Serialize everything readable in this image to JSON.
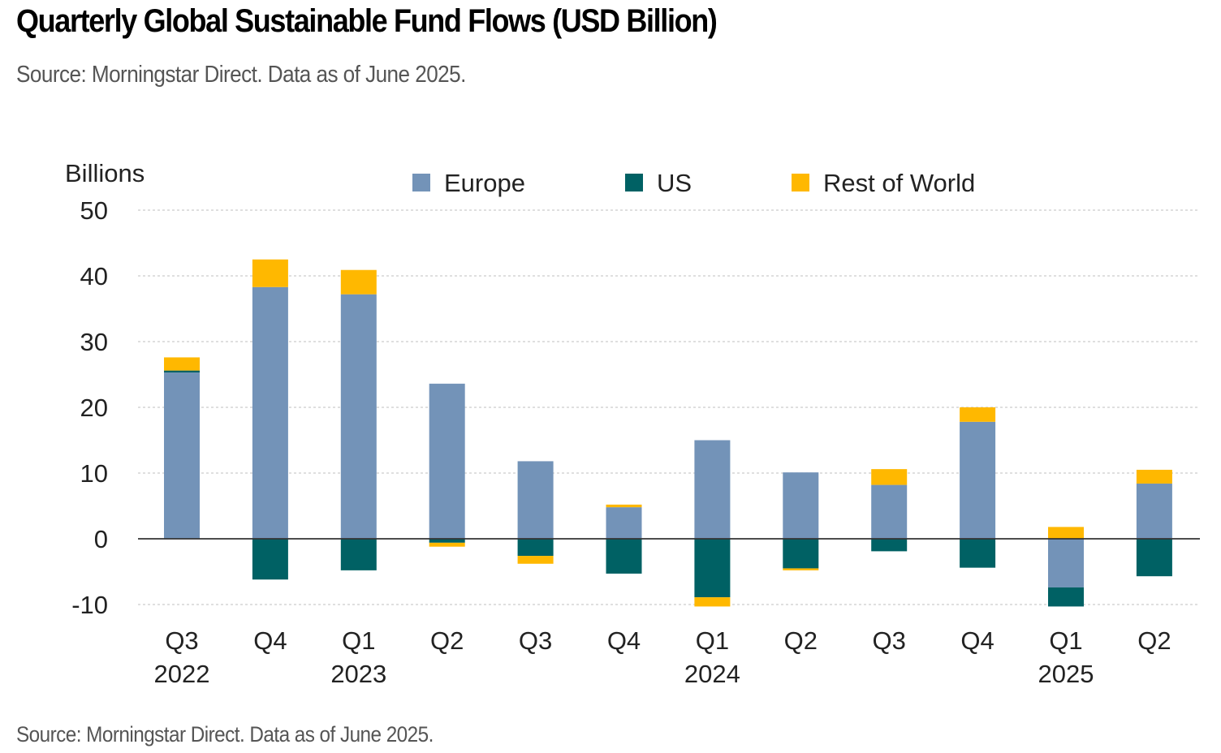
{
  "title": "Quarterly Global Sustainable Fund Flows (USD Billion)",
  "subtitle": "Source: Morningstar Direct. Data as of June 2025.",
  "footer_source": "Source: Morningstar Direct. Data as of June 2025.",
  "colors": {
    "Europe": "#7393B8",
    "US": "#006164",
    "Rest of World": "#FFB800",
    "grid": "#cccccc",
    "axis_text": "#222222"
  },
  "chart_data": {
    "type": "bar",
    "stacked": true,
    "ylabel": "Billions",
    "ylim": [
      -10,
      50
    ],
    "yticks": [
      50,
      40,
      30,
      20,
      10,
      0,
      -10
    ],
    "grid": true,
    "legend_position": "top",
    "categories": [
      {
        "quarter": "Q3",
        "year": "2022"
      },
      {
        "quarter": "Q4",
        "year": ""
      },
      {
        "quarter": "Q1",
        "year": "2023"
      },
      {
        "quarter": "Q2",
        "year": ""
      },
      {
        "quarter": "Q3",
        "year": ""
      },
      {
        "quarter": "Q4",
        "year": ""
      },
      {
        "quarter": "Q1",
        "year": "2024"
      },
      {
        "quarter": "Q2",
        "year": ""
      },
      {
        "quarter": "Q3",
        "year": ""
      },
      {
        "quarter": "Q4",
        "year": ""
      },
      {
        "quarter": "Q1",
        "year": "2025"
      },
      {
        "quarter": "Q2",
        "year": ""
      }
    ],
    "series": [
      {
        "name": "Europe",
        "values": [
          25.3,
          38.3,
          37.2,
          23.6,
          11.8,
          4.8,
          15.0,
          10.1,
          8.2,
          17.8,
          -7.4,
          8.4
        ]
      },
      {
        "name": "US",
        "values": [
          0.3,
          -6.2,
          -4.8,
          -0.6,
          -2.6,
          -5.3,
          -8.9,
          -4.5,
          -1.9,
          -4.4,
          -2.9,
          -5.7
        ]
      },
      {
        "name": "Rest of World",
        "values": [
          2.0,
          4.2,
          3.7,
          -0.6,
          -1.2,
          0.4,
          -1.4,
          -0.3,
          2.4,
          2.2,
          1.8,
          2.1
        ]
      }
    ]
  }
}
